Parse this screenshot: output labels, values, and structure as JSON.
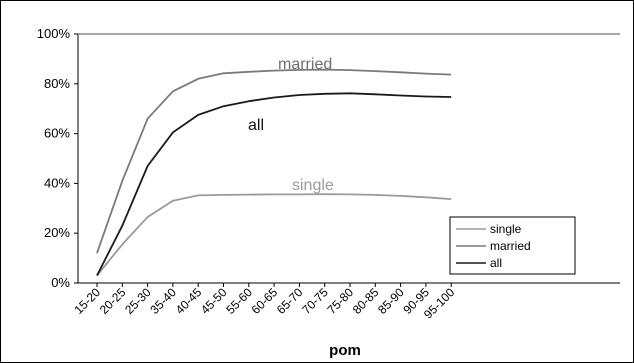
{
  "chart_data": {
    "type": "line",
    "title": "",
    "xlabel": "pom",
    "ylabel": "",
    "categories": [
      "15-20",
      "20-25",
      "25-30",
      "35-40",
      "40-45",
      "45-50",
      "55-60",
      "60-65",
      "65-70",
      "70-75",
      "75-80",
      "80-85",
      "85-90",
      "90-95",
      "95-100"
    ],
    "ylim": [
      0,
      100
    ],
    "yticks": [
      "0%",
      "20%",
      "40%",
      "60%",
      "80%",
      "100%"
    ],
    "yticks_values": [
      0,
      20,
      40,
      60,
      80,
      100
    ],
    "grid": false,
    "reference_line": 100,
    "legend_placement": "bottom-right",
    "series": [
      {
        "name": "single",
        "color": "#9a9a9a",
        "values": [
          3,
          15.5,
          26.5,
          33,
          35.2,
          35.4,
          35.5,
          35.6,
          35.6,
          35.7,
          35.6,
          35.4,
          35,
          34.4,
          33.7
        ]
      },
      {
        "name": "married",
        "color": "#7a7a7a",
        "values": [
          12,
          41,
          66,
          77,
          82,
          84.2,
          84.8,
          85.3,
          85.6,
          85.7,
          85.5,
          85.1,
          84.6,
          84.1,
          83.7
        ]
      },
      {
        "name": "all",
        "color": "#1a1a1a",
        "values": [
          3,
          23,
          47,
          60.5,
          67.5,
          71,
          73,
          74.5,
          75.5,
          76,
          76.2,
          75.8,
          75.3,
          74.9,
          74.7
        ]
      }
    ],
    "annotations": [
      {
        "text": "married",
        "series": "married"
      },
      {
        "text": "all",
        "series": "all"
      },
      {
        "text": "single",
        "series": "single"
      }
    ]
  }
}
